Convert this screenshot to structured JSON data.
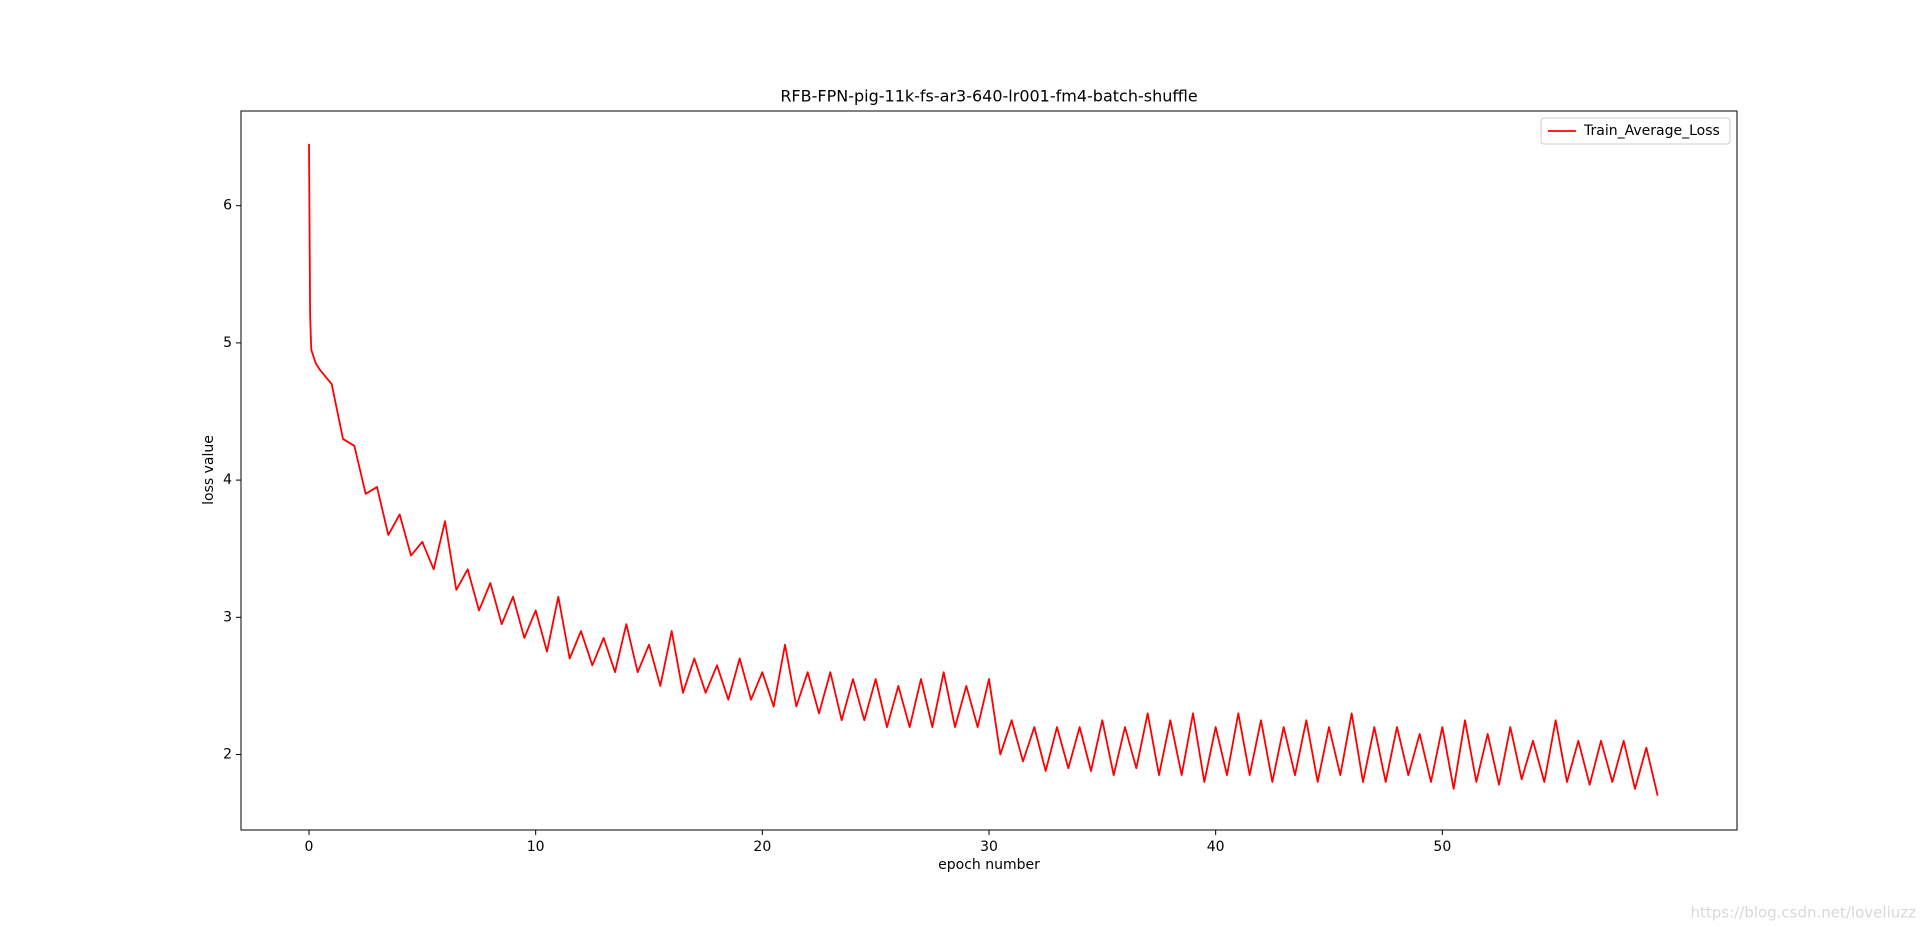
{
  "chart_data": {
    "type": "line",
    "title": "RFB-FPN-pig-11k-fs-ar3-640-lr001-fm4-batch-shuffle",
    "xlabel": "epoch number",
    "ylabel": "loss value",
    "watermark": "https://blog.csdn.net/loveliuzz",
    "legend": "upper right",
    "grid": false,
    "xlim": [
      -3,
      63
    ],
    "ylim": [
      1.45,
      6.69
    ],
    "xticks": [
      0,
      10,
      20,
      30,
      40,
      50
    ],
    "yticks": [
      2,
      3,
      4,
      5,
      6
    ],
    "x": [
      0,
      0.05,
      0.1,
      0.3,
      0.5,
      1,
      1.5,
      2,
      2.5,
      3,
      3.5,
      4,
      4.5,
      5,
      5.5,
      6,
      6.5,
      7,
      7.5,
      8,
      8.5,
      9,
      9.5,
      10,
      10.5,
      11,
      11.5,
      12,
      12.5,
      13,
      13.5,
      14,
      14.5,
      15,
      15.5,
      16,
      16.5,
      17,
      17.5,
      18,
      18.5,
      19,
      19.5,
      20,
      20.5,
      21,
      21.5,
      22,
      22.5,
      23,
      23.5,
      24,
      24.5,
      25,
      25.5,
      26,
      26.5,
      27,
      27.5,
      28,
      28.5,
      29,
      29.5,
      30,
      30.5,
      31,
      31.5,
      32,
      32.5,
      33,
      33.5,
      34,
      34.5,
      35,
      35.5,
      36,
      36.5,
      37,
      37.5,
      38,
      38.5,
      39,
      39.5,
      40,
      40.5,
      41,
      41.5,
      42,
      42.5,
      43,
      43.5,
      44,
      44.5,
      45,
      45.5,
      46,
      46.5,
      47,
      47.5,
      48,
      48.5,
      49,
      49.5,
      50,
      50.5,
      51,
      51.5,
      52,
      52.5,
      53,
      53.5,
      54,
      54.5,
      55,
      55.5,
      56,
      56.5,
      57,
      57.5,
      58,
      58.5,
      59,
      59.5
    ],
    "series": [
      {
        "name": "Train_Average_Loss",
        "color": "#ff0000",
        "values": [
          6.45,
          5.2,
          4.95,
          4.85,
          4.8,
          4.7,
          4.3,
          4.25,
          3.9,
          3.95,
          3.6,
          3.75,
          3.45,
          3.55,
          3.35,
          3.7,
          3.2,
          3.35,
          3.05,
          3.25,
          2.95,
          3.15,
          2.85,
          3.05,
          2.75,
          3.15,
          2.7,
          2.9,
          2.65,
          2.85,
          2.6,
          2.95,
          2.6,
          2.8,
          2.5,
          2.9,
          2.45,
          2.7,
          2.45,
          2.65,
          2.4,
          2.7,
          2.4,
          2.6,
          2.35,
          2.8,
          2.35,
          2.6,
          2.3,
          2.6,
          2.25,
          2.55,
          2.25,
          2.55,
          2.2,
          2.5,
          2.2,
          2.55,
          2.2,
          2.6,
          2.2,
          2.5,
          2.2,
          2.55,
          2.0,
          2.25,
          1.95,
          2.2,
          1.88,
          2.2,
          1.9,
          2.2,
          1.88,
          2.25,
          1.85,
          2.2,
          1.9,
          2.3,
          1.85,
          2.25,
          1.85,
          2.3,
          1.8,
          2.2,
          1.85,
          2.3,
          1.85,
          2.25,
          1.8,
          2.2,
          1.85,
          2.25,
          1.8,
          2.2,
          1.85,
          2.3,
          1.8,
          2.2,
          1.8,
          2.2,
          1.85,
          2.15,
          1.8,
          2.2,
          1.75,
          2.25,
          1.8,
          2.15,
          1.78,
          2.2,
          1.82,
          2.1,
          1.8,
          2.25,
          1.8,
          2.1,
          1.78,
          2.1,
          1.8,
          2.1,
          1.75,
          2.05,
          1.7
        ]
      }
    ]
  }
}
